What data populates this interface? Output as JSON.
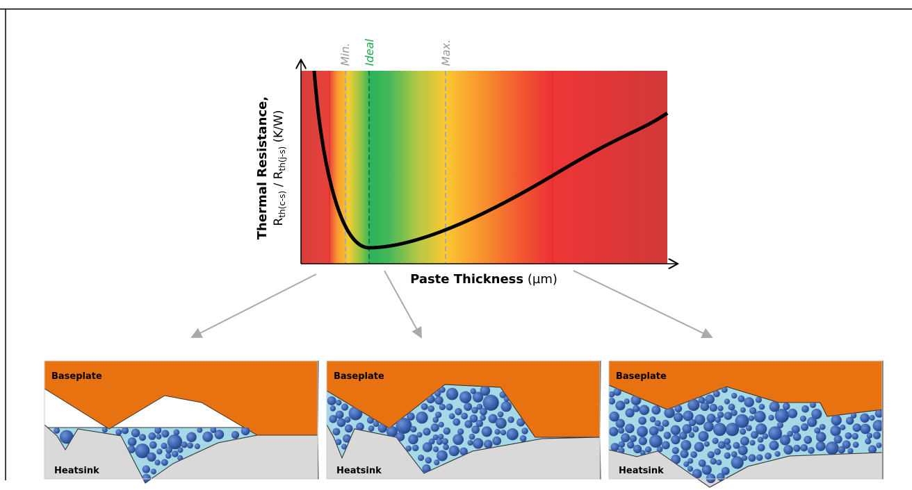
{
  "chart": {
    "markers": {
      "min": "Min.",
      "ideal": "Ideal",
      "max": "Max."
    },
    "y_axis": {
      "title": "Thermal Resistance,",
      "symbol_1": "R",
      "sub_1": "th(c-s)",
      "separator": " / ",
      "symbol_2": "R",
      "sub_2": "th(j-s)",
      "unit": " (K/W)"
    },
    "x_axis": {
      "title": "Paste Thickness",
      "unit": " (µm)"
    }
  },
  "panels": [
    {
      "top": "Baseplate",
      "bottom": "Heatsink"
    },
    {
      "top": "Baseplate",
      "bottom": "Heatsink"
    },
    {
      "top": "Baseplate",
      "bottom": "Heatsink"
    }
  ]
}
